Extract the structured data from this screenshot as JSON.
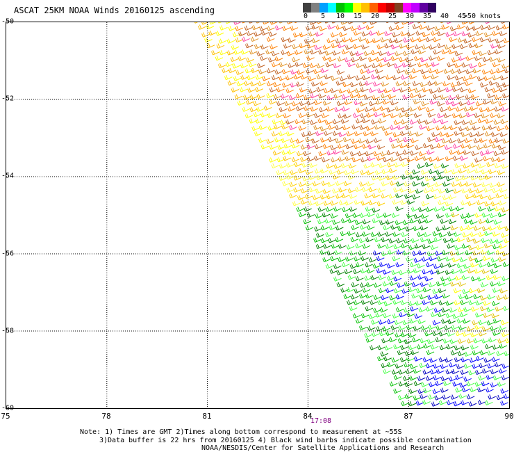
{
  "title": "ASCAT 25KM NOAA Winds 20160125 ascending",
  "colorbar": {
    "colors": [
      "#404040",
      "#808080",
      "#00a0ff",
      "#00ffff",
      "#00c000",
      "#00ff00",
      "#ffff00",
      "#ffc000",
      "#ff6000",
      "#ff0000",
      "#c00000",
      "#804020",
      "#ff00ff",
      "#c000ff",
      "#6000a0",
      "#300060"
    ],
    "labels": [
      "0",
      "5",
      "10",
      "15",
      "20",
      "25",
      "30",
      "35",
      "40",
      "45",
      ">50 knots"
    ]
  },
  "map": {
    "lon_range": [
      75,
      90
    ],
    "lat_range": [
      -60,
      -50
    ],
    "lat_ticks": [
      "-50",
      "-52",
      "-54",
      "-56",
      "-58",
      "-60"
    ],
    "lon_ticks": [
      "75",
      "78",
      "81",
      "84",
      "87",
      "90"
    ],
    "time_label": "17:08"
  },
  "notes": {
    "line1": "Note: 1) Times are GMT 2)Times along bottom correspond to measurement at ~55S",
    "line2": "3)Data buffer is 22 hrs from 20160125 4) Black wind barbs indicate possible contamination",
    "line3": "NOAA/NESDIS/Center for Satellite Applications and Research"
  }
}
